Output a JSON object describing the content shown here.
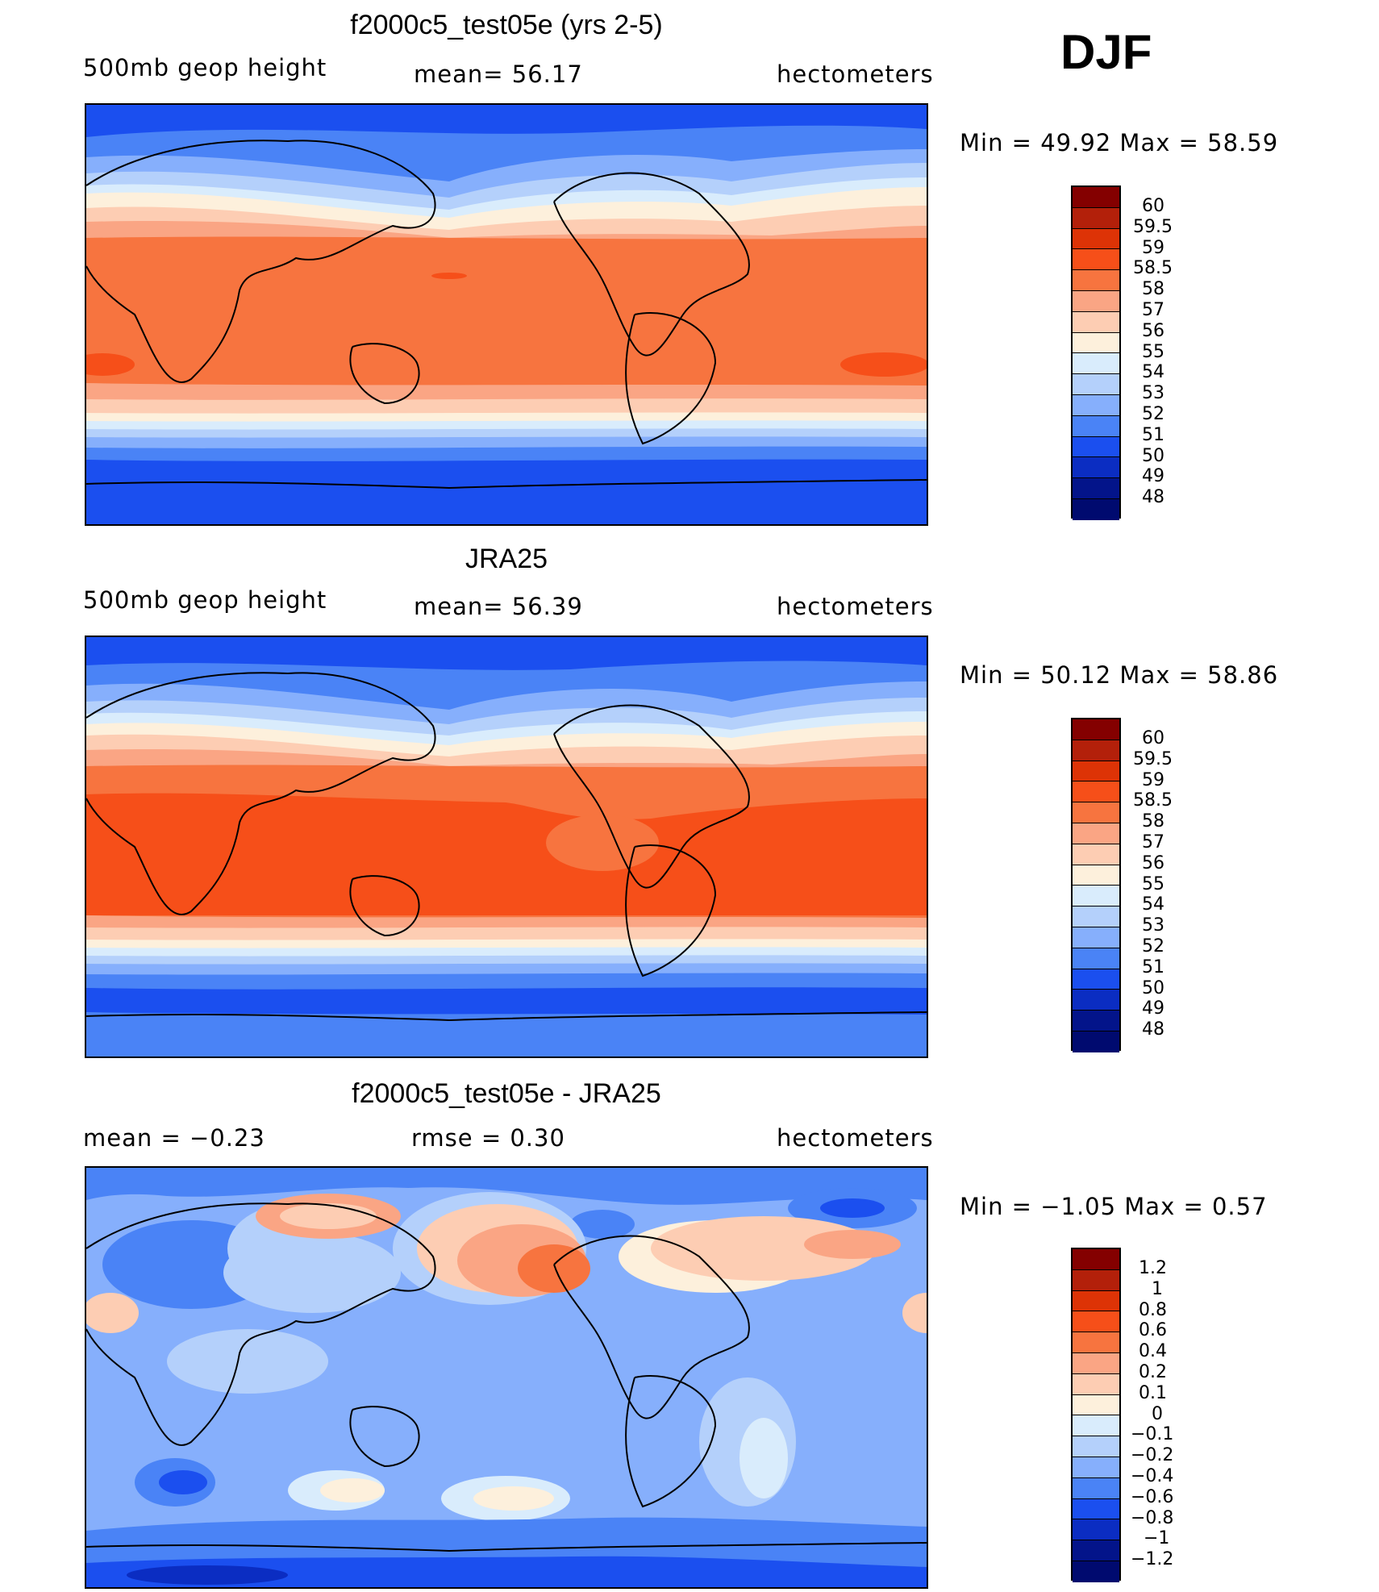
{
  "season": "DJF",
  "panels": [
    {
      "title": "f2000c5_test05e (yrs 2-5)",
      "left_label": "500mb  geop  height",
      "center_label": "mean=   56.17",
      "right_label": "hectometers",
      "minmax": "Min  =    49.92  Max  =    58.59",
      "colorbar_labels": [
        "60",
        "59.5",
        "59",
        "58.5",
        "58",
        "57",
        "56",
        "55",
        "54",
        "53",
        "52",
        "51",
        "50",
        "49",
        "48"
      ]
    },
    {
      "title": "JRA25",
      "left_label": "500mb  geop  height",
      "center_label": "mean=   56.39",
      "right_label": "hectometers",
      "minmax": "Min  =    50.12  Max  =    58.86",
      "colorbar_labels": [
        "60",
        "59.5",
        "59",
        "58.5",
        "58",
        "57",
        "56",
        "55",
        "54",
        "53",
        "52",
        "51",
        "50",
        "49",
        "48"
      ]
    },
    {
      "title": "f2000c5_test05e - JRA25",
      "left_label": "mean  =    −0.23",
      "center_label": "rmse  =     0.30",
      "right_label": "hectometers",
      "minmax": "Min  =    −1.05  Max  =      0.57",
      "colorbar_labels": [
        "1.2",
        "1",
        "0.8",
        "0.6",
        "0.4",
        "0.2",
        "0.1",
        "0",
        "−0.1",
        "−0.2",
        "−0.4",
        "−0.6",
        "−0.8",
        "−1",
        "−1.2"
      ]
    }
  ],
  "colorbar_colors": [
    "#840000",
    "#b3200a",
    "#dd3306",
    "#f64f19",
    "#f7743f",
    "#faa584",
    "#fdcdb3",
    "#fdf0dc",
    "#d9ecfc",
    "#b4d0fb",
    "#86affc",
    "#4a83f6",
    "#1b4fef",
    "#0b2dc2",
    "#03148a",
    "#000a6f"
  ]
}
